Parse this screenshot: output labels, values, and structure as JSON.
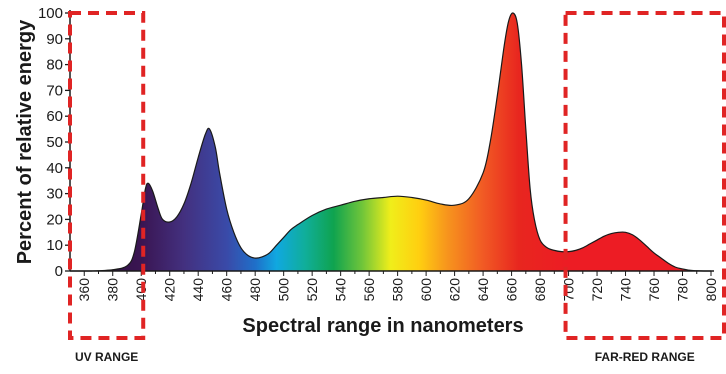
{
  "chart_data": {
    "type": "area",
    "xlabel": "Spectral range in nanometers",
    "ylabel": "Percent of relative energy",
    "xlim": [
      350,
      800
    ],
    "ylim": [
      0,
      100
    ],
    "x_ticks": [
      "360",
      "380",
      "400",
      "420",
      "440",
      "460",
      "480",
      "500",
      "520",
      "540",
      "560",
      "580",
      "600",
      "620",
      "640",
      "660",
      "680",
      "700",
      "720",
      "740",
      "760",
      "780",
      "800"
    ],
    "y_ticks": [
      "0",
      "10",
      "20",
      "30",
      "40",
      "50",
      "60",
      "70",
      "80",
      "90",
      "100"
    ],
    "series": [
      {
        "x": [
          350,
          365,
          380,
          390,
          395,
          400,
          403,
          405,
          408,
          412,
          415,
          420,
          425,
          430,
          435,
          440,
          445,
          448,
          452,
          455,
          460,
          465,
          470,
          475,
          480,
          485,
          490,
          495,
          500,
          505,
          510,
          520,
          530,
          540,
          550,
          560,
          570,
          580,
          590,
          600,
          610,
          620,
          630,
          640,
          645,
          650,
          655,
          658,
          661,
          664,
          667,
          670,
          673,
          676,
          680,
          685,
          690,
          695,
          700,
          705,
          710,
          715,
          720,
          725,
          730,
          735,
          740,
          745,
          750,
          755,
          760,
          765,
          770,
          775,
          780,
          785,
          790,
          795,
          800
        ],
        "values": [
          0,
          0,
          0.5,
          2,
          7,
          22,
          32,
          34,
          31,
          24,
          20,
          19,
          21,
          26,
          34,
          44,
          53,
          55,
          48,
          38,
          24,
          15,
          9,
          6,
          5,
          5.5,
          7,
          10,
          13,
          16,
          18,
          21.5,
          24,
          25.5,
          27,
          28,
          28.5,
          29,
          28.5,
          27.5,
          26,
          25.5,
          28,
          38,
          50,
          68,
          88,
          97,
          100,
          96,
          80,
          55,
          32,
          20,
          12,
          9,
          8,
          7.5,
          7.5,
          8,
          9,
          10.5,
          12,
          13.5,
          14.5,
          15,
          15,
          14,
          12,
          9.5,
          7,
          5,
          3,
          1.5,
          0.8,
          0.3,
          0.1,
          0,
          0
        ]
      }
    ],
    "color_stops": [
      {
        "nm": 350,
        "color": "#2a0f3a"
      },
      {
        "nm": 400,
        "color": "#3a1552"
      },
      {
        "nm": 430,
        "color": "#43307f"
      },
      {
        "nm": 460,
        "color": "#3a4aa8"
      },
      {
        "nm": 480,
        "color": "#1f6fc9"
      },
      {
        "nm": 495,
        "color": "#10a8e0"
      },
      {
        "nm": 515,
        "color": "#10ae9a"
      },
      {
        "nm": 535,
        "color": "#0fa34f"
      },
      {
        "nm": 555,
        "color": "#6fc53a"
      },
      {
        "nm": 575,
        "color": "#f0ee1a"
      },
      {
        "nm": 595,
        "color": "#ffcf10"
      },
      {
        "nm": 615,
        "color": "#f7941d"
      },
      {
        "nm": 640,
        "color": "#f15a24"
      },
      {
        "nm": 665,
        "color": "#e8261f"
      },
      {
        "nm": 700,
        "color": "#ed1c24"
      },
      {
        "nm": 800,
        "color": "#ed1c24"
      }
    ],
    "regions": [
      {
        "label": "UV RANGE",
        "from_nm": 350,
        "to_nm": 400,
        "color": "#e02424"
      },
      {
        "label": "FAR-RED RANGE",
        "from_nm": 700,
        "to_nm": 800,
        "color": "#e02424"
      }
    ]
  }
}
